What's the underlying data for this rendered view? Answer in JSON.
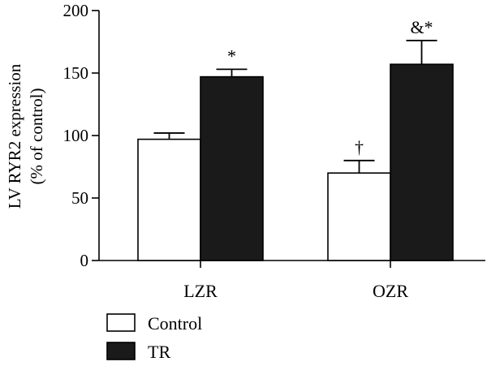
{
  "chart_data": {
    "type": "bar",
    "title": "",
    "ylabel_lines": [
      "LV RYR2 expression",
      "(% of control)"
    ],
    "xlabel": "",
    "ylim": [
      0,
      200
    ],
    "yticks": [
      0,
      50,
      100,
      150,
      200
    ],
    "ytick_labels": [
      "0",
      "50",
      "100",
      "150",
      "200"
    ],
    "categories": [
      "LZR",
      "OZR"
    ],
    "series": [
      {
        "name": "Control",
        "color": "#ffffff",
        "values": [
          97,
          70
        ],
        "errors": [
          5,
          10
        ],
        "annotations": [
          "",
          "†"
        ]
      },
      {
        "name": "TR",
        "color": "#1a1a1a",
        "values": [
          147,
          157
        ],
        "errors": [
          6,
          19
        ],
        "annotations": [
          "*",
          "&*"
        ]
      }
    ],
    "legend_position": "bottom-left",
    "grid": false
  }
}
